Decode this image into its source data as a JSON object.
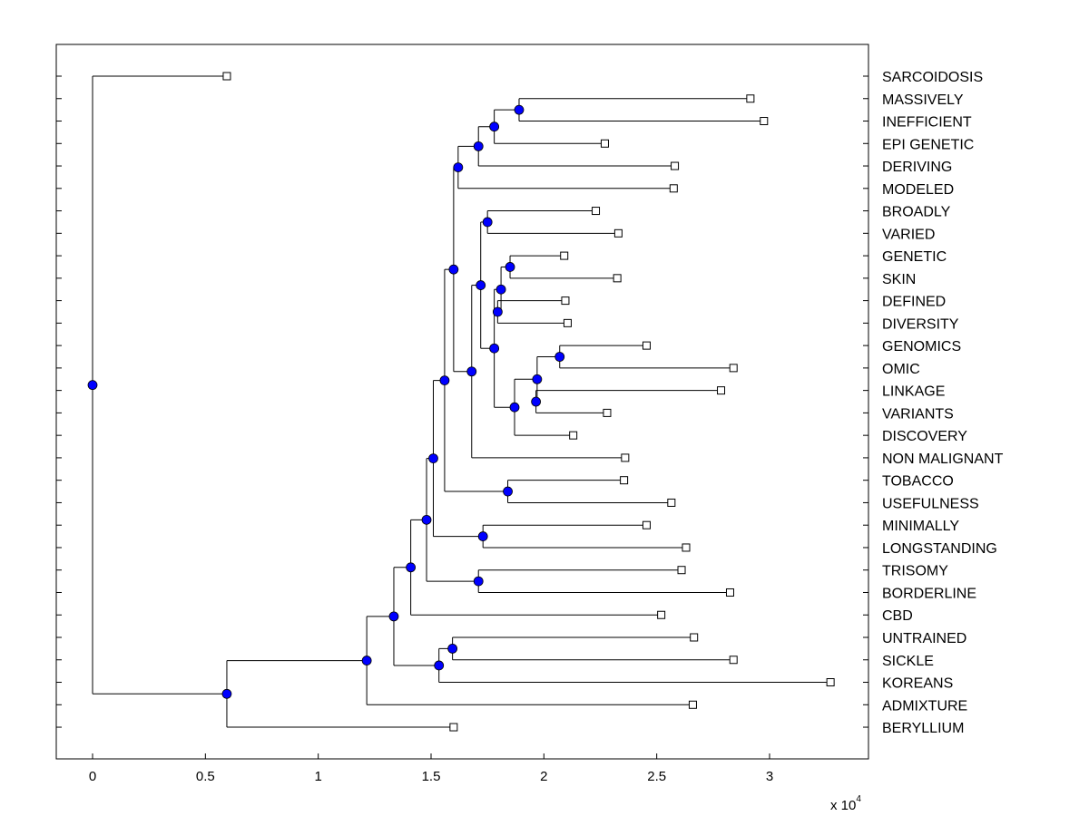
{
  "chart_data": {
    "type": "dendrogram",
    "orientation": "horizontal",
    "leaf_labels": [
      "SARCOIDOSIS",
      "MASSIVELY",
      "INEFFICIENT",
      "EPI GENETIC",
      "DERIVING",
      "MODELED",
      "BROADLY",
      "VARIED",
      "GENETIC",
      "SKIN",
      "DEFINED",
      "DIVERSITY",
      "GENOMICS",
      "OMIC",
      "LINKAGE",
      "VARIANTS",
      "DISCOVERY",
      "NON MALIGNANT",
      "TOBACCO",
      "USEFULNESS",
      "MINIMALLY",
      "LONGSTANDING",
      "TRISOMY",
      "BORDERLINE",
      "CBD",
      "UNTRAINED",
      "SICKLE",
      "KOREANS",
      "ADMIXTURE",
      "BERYLLIUM"
    ],
    "leaf_values": [
      5950,
      29150,
      29750,
      22700,
      25800,
      25750,
      22300,
      23300,
      20900,
      23250,
      20950,
      21050,
      24550,
      28400,
      27850,
      22800,
      21300,
      23600,
      23550,
      25650,
      24550,
      26300,
      26100,
      28250,
      25200,
      26650,
      28400,
      32700,
      26600,
      16000
    ],
    "internal_nodes": [
      {
        "id": "n1",
        "x": 18900,
        "children": [
          "L1",
          "L2"
        ]
      },
      {
        "id": "n2",
        "x": 17800,
        "children": [
          "n1",
          "L3"
        ]
      },
      {
        "id": "n3",
        "x": 17100,
        "children": [
          "n2",
          "L4"
        ]
      },
      {
        "id": "n4",
        "x": 16200,
        "children": [
          "n3",
          "L5"
        ]
      },
      {
        "id": "n5",
        "x": 17500,
        "children": [
          "L6",
          "L7"
        ]
      },
      {
        "id": "n6",
        "x": 18500,
        "children": [
          "L8",
          "L9"
        ]
      },
      {
        "id": "n7",
        "x": 18100,
        "children": [
          "n6",
          "n8"
        ]
      },
      {
        "id": "n8",
        "x": 17950,
        "children": [
          "L10",
          "L11"
        ]
      },
      {
        "id": "n9",
        "x": 20700,
        "children": [
          "L12",
          "L13"
        ]
      },
      {
        "id": "n10",
        "x": 19700,
        "children": [
          "n9",
          "n11"
        ]
      },
      {
        "id": "n11",
        "x": 19650,
        "children": [
          "L14",
          "L15"
        ]
      },
      {
        "id": "n12",
        "x": 18700,
        "children": [
          "n10",
          "L16"
        ]
      },
      {
        "id": "n13",
        "x": 17800,
        "children": [
          "n7",
          "n12"
        ]
      },
      {
        "id": "n14",
        "x": 17200,
        "children": [
          "n5",
          "n13"
        ]
      },
      {
        "id": "n15",
        "x": 16800,
        "children": [
          "n14",
          "L17"
        ]
      },
      {
        "id": "n16",
        "x": 16000,
        "children": [
          "n4",
          "n15"
        ]
      },
      {
        "id": "n17",
        "x": 18400,
        "children": [
          "L18",
          "L19"
        ]
      },
      {
        "id": "n18",
        "x": 15600,
        "children": [
          "n16",
          "n17"
        ]
      },
      {
        "id": "n19",
        "x": 17300,
        "children": [
          "L20",
          "L21"
        ]
      },
      {
        "id": "n20",
        "x": 15100,
        "children": [
          "n18",
          "n19"
        ]
      },
      {
        "id": "n21",
        "x": 17100,
        "children": [
          "L22",
          "L23"
        ]
      },
      {
        "id": "n22",
        "x": 14800,
        "children": [
          "n20",
          "n21"
        ]
      },
      {
        "id": "n23",
        "x": 14100,
        "children": [
          "n22",
          "L24"
        ]
      },
      {
        "id": "n24",
        "x": 15950,
        "children": [
          "L25",
          "L26"
        ]
      },
      {
        "id": "n25",
        "x": 15350,
        "children": [
          "n24",
          "L27"
        ]
      },
      {
        "id": "n26",
        "x": 13350,
        "children": [
          "n23",
          "n25"
        ]
      },
      {
        "id": "n27",
        "x": 12150,
        "children": [
          "n26",
          "L28"
        ]
      },
      {
        "id": "n28",
        "x": 5950,
        "children": [
          "n27",
          "L29"
        ]
      },
      {
        "id": "n29",
        "x": 0,
        "children": [
          "L0",
          "n28"
        ]
      }
    ],
    "xlim": [
      -1600,
      34300
    ],
    "xticks": [
      0,
      5000,
      10000,
      15000,
      20000,
      25000,
      30000
    ],
    "xtick_labels": [
      "0",
      "0.5",
      "1",
      "1.5",
      "2",
      "2.5",
      "3"
    ],
    "axis_multiplier": {
      "base": "x 10",
      "exponent": "4"
    },
    "colors": {
      "node_fill": "#0000ff",
      "line": "#000000",
      "leaf_marker_fill": "#ffffff"
    }
  }
}
